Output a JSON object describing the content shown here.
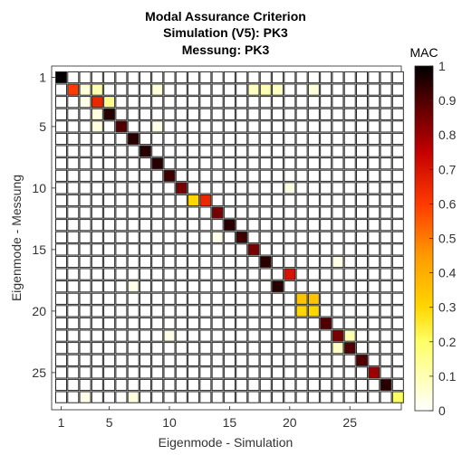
{
  "chart_data": {
    "type": "heatmap",
    "title": [
      "Modal Assurance Criterion",
      "Simulation (V5): PK3",
      "Messung: PK3"
    ],
    "xlabel": "Eigenmode - Simulation",
    "ylabel": "Eigenmode - Messung",
    "colorbar_label": "MAC",
    "n_x": 29,
    "n_y": 27,
    "x_ticks": [
      1,
      5,
      10,
      15,
      20,
      25
    ],
    "y_ticks": [
      1,
      5,
      10,
      15,
      20,
      25
    ],
    "clim": [
      0,
      1
    ],
    "colorbar_ticks": [
      0,
      0.1,
      0.2,
      0.3,
      0.4,
      0.5,
      0.6,
      0.7,
      0.8,
      0.9,
      1
    ],
    "colormap": "hot (reversed: white at 0, yellow, orange, red, black at 1)",
    "grid": false,
    "values": [
      [
        1,
        1,
        1.0
      ],
      [
        2,
        2,
        0.6
      ],
      [
        3,
        2,
        0.05
      ],
      [
        4,
        2,
        0.1
      ],
      [
        9,
        2,
        0.05
      ],
      [
        17,
        2,
        0.08
      ],
      [
        18,
        2,
        0.1
      ],
      [
        19,
        2,
        0.08
      ],
      [
        22,
        2,
        0.05
      ],
      [
        3,
        3,
        0.03
      ],
      [
        4,
        3,
        0.65
      ],
      [
        5,
        3,
        0.15
      ],
      [
        5,
        4,
        0.95
      ],
      [
        4,
        4,
        0.04
      ],
      [
        6,
        5,
        0.9
      ],
      [
        4,
        5,
        0.04
      ],
      [
        9,
        5,
        0.03
      ],
      [
        7,
        6,
        0.95
      ],
      [
        8,
        7,
        0.95
      ],
      [
        9,
        8,
        0.95
      ],
      [
        10,
        9,
        0.92
      ],
      [
        11,
        10,
        0.85
      ],
      [
        12,
        11,
        0.3
      ],
      [
        13,
        11,
        0.65
      ],
      [
        14,
        12,
        0.85
      ],
      [
        15,
        13,
        0.95
      ],
      [
        16,
        14,
        0.92
      ],
      [
        17,
        15,
        0.85
      ],
      [
        18,
        16,
        0.95
      ],
      [
        20,
        17,
        0.7
      ],
      [
        19,
        18,
        0.95
      ],
      [
        21,
        19,
        0.35
      ],
      [
        22,
        19,
        0.35
      ],
      [
        21,
        20,
        0.3
      ],
      [
        22,
        20,
        0.3
      ],
      [
        23,
        21,
        0.9
      ],
      [
        24,
        22,
        0.85
      ],
      [
        25,
        22,
        0.1
      ],
      [
        25,
        23,
        0.9
      ],
      [
        24,
        23,
        0.08
      ],
      [
        26,
        24,
        0.9
      ],
      [
        27,
        25,
        0.8
      ],
      [
        28,
        26,
        0.95
      ],
      [
        29,
        27,
        0.2
      ],
      [
        7,
        18,
        0.03
      ],
      [
        10,
        22,
        0.03
      ],
      [
        3,
        27,
        0.03
      ],
      [
        7,
        27,
        0.04
      ],
      [
        20,
        10,
        0.03
      ],
      [
        24,
        16,
        0.03
      ],
      [
        14,
        14,
        0.03
      ]
    ]
  }
}
